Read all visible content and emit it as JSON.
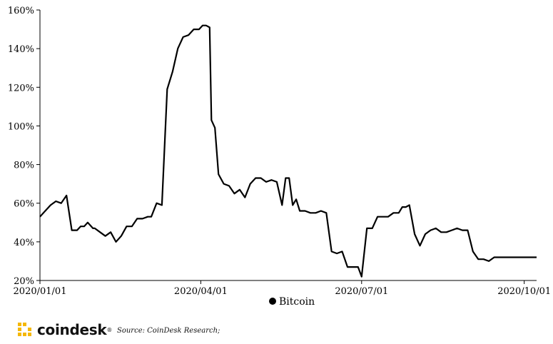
{
  "chart_data": {
    "type": "line",
    "title": "",
    "xlabel": "",
    "ylabel": "",
    "ylim": [
      20,
      160
    ],
    "yticks": [
      "20%",
      "40%",
      "60%",
      "80%",
      "100%",
      "120%",
      "140%",
      "160%"
    ],
    "xticks": [
      "2020/01/01",
      "2020/04/01",
      "2020/07/01",
      "2020/10/01"
    ],
    "xlim": [
      "2020-01-01",
      "2020-10-08"
    ],
    "legend": "bottom-center",
    "series": [
      {
        "name": "Bitcoin",
        "color": "#000000",
        "x": [
          "2020-01-01",
          "2020-01-04",
          "2020-01-07",
          "2020-01-10",
          "2020-01-13",
          "2020-01-16",
          "2020-01-19",
          "2020-01-22",
          "2020-01-24",
          "2020-01-26",
          "2020-01-28",
          "2020-01-29",
          "2020-01-31",
          "2020-02-01",
          "2020-02-04",
          "2020-02-07",
          "2020-02-10",
          "2020-02-13",
          "2020-02-16",
          "2020-02-19",
          "2020-02-22",
          "2020-02-25",
          "2020-02-28",
          "2020-03-02",
          "2020-03-04",
          "2020-03-07",
          "2020-03-10",
          "2020-03-13",
          "2020-03-16",
          "2020-03-19",
          "2020-03-22",
          "2020-03-25",
          "2020-03-28",
          "2020-03-31",
          "2020-04-02",
          "2020-04-04",
          "2020-04-06",
          "2020-04-07",
          "2020-04-09",
          "2020-04-11",
          "2020-04-14",
          "2020-04-17",
          "2020-04-20",
          "2020-04-23",
          "2020-04-26",
          "2020-04-29",
          "2020-05-02",
          "2020-05-05",
          "2020-05-08",
          "2020-05-11",
          "2020-05-14",
          "2020-05-17",
          "2020-05-19",
          "2020-05-21",
          "2020-05-23",
          "2020-05-25",
          "2020-05-27",
          "2020-05-30",
          "2020-06-02",
          "2020-06-05",
          "2020-06-08",
          "2020-06-11",
          "2020-06-14",
          "2020-06-17",
          "2020-06-20",
          "2020-06-23",
          "2020-06-25",
          "2020-06-26",
          "2020-06-29",
          "2020-07-01",
          "2020-07-04",
          "2020-07-07",
          "2020-07-10",
          "2020-07-13",
          "2020-07-16",
          "2020-07-19",
          "2020-07-22",
          "2020-07-24",
          "2020-07-26",
          "2020-07-28",
          "2020-07-31",
          "2020-08-03",
          "2020-08-06",
          "2020-08-09",
          "2020-08-12",
          "2020-08-15",
          "2020-08-18",
          "2020-08-21",
          "2020-08-24",
          "2020-08-27",
          "2020-08-29",
          "2020-08-30",
          "2020-09-02",
          "2020-09-05",
          "2020-09-08",
          "2020-09-11",
          "2020-09-14",
          "2020-09-17",
          "2020-09-20",
          "2020-09-23",
          "2020-09-26",
          "2020-09-29",
          "2020-10-01",
          "2020-10-03",
          "2020-10-05",
          "2020-10-07",
          "2020-10-08"
        ],
        "values": [
          53,
          56,
          59,
          61,
          60,
          64,
          46,
          46,
          48,
          48,
          50,
          49,
          47,
          47,
          45,
          43,
          45,
          40,
          43,
          48,
          48,
          52,
          52,
          53,
          53,
          60,
          59,
          119,
          128,
          140,
          146,
          147,
          150,
          150,
          152,
          152,
          151,
          103,
          99,
          75,
          70,
          69,
          65,
          67,
          63,
          70,
          73,
          73,
          71,
          72,
          71,
          59,
          73,
          73,
          59,
          62,
          56,
          56,
          55,
          55,
          56,
          55,
          35,
          34,
          35,
          27,
          27,
          27,
          27,
          22,
          47,
          47,
          53,
          53,
          53,
          55,
          55,
          58,
          58,
          59,
          44,
          38,
          44,
          46,
          47,
          45,
          45,
          46,
          47,
          46,
          46,
          46,
          35,
          31,
          31,
          30,
          32,
          32,
          32,
          32,
          32,
          32,
          32,
          32,
          32,
          32,
          32
        ]
      }
    ]
  },
  "footer": {
    "brand": "coindesk",
    "brand_mark": "®",
    "source": "Source: CoinDesk Research;"
  }
}
